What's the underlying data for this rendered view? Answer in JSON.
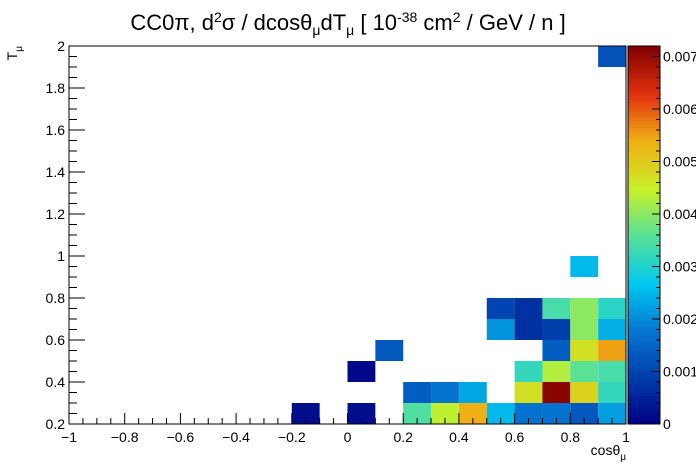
{
  "chart_data": {
    "type": "heatmap",
    "title": {
      "pre": "CC0π, d",
      "sup1": "2",
      "mid1": "σ / dcosθ",
      "sub1": "μ",
      "mid2": "dT",
      "sub2": "μ",
      "mid3": " [ 10",
      "sup2": "-38",
      "mid4": " cm",
      "sup3": "2",
      "post": " / GeV / n ]"
    },
    "xlabel": {
      "main": "cosθ",
      "sub": "μ"
    },
    "ylabel": {
      "main": "T",
      "sub": "μ"
    },
    "xlim": [
      -1,
      1
    ],
    "ylim": [
      0.2,
      2
    ],
    "zlim": [
      0,
      0.0072
    ],
    "x_ticks": [
      "−1",
      "−0.8",
      "−0.6",
      "−0.4",
      "−0.2",
      "0",
      "0.2",
      "0.4",
      "0.6",
      "0.8",
      "1"
    ],
    "y_ticks": [
      "0.2",
      "0.4",
      "0.6",
      "0.8",
      "1",
      "1.2",
      "1.4",
      "1.6",
      "1.8",
      "2"
    ],
    "z_ticks": [
      "0",
      "0.001",
      "0.002",
      "0.003",
      "0.004",
      "0.005",
      "0.006",
      "0.007"
    ],
    "bins": [
      {
        "x": [
          -0.2,
          -0.1
        ],
        "y": [
          0.2,
          0.3
        ],
        "z": 0.0002
      },
      {
        "x": [
          0.0,
          0.1
        ],
        "y": [
          0.2,
          0.3
        ],
        "z": 0.0002
      },
      {
        "x": [
          0.2,
          0.3
        ],
        "y": [
          0.2,
          0.3
        ],
        "z": 0.0035
      },
      {
        "x": [
          0.3,
          0.4
        ],
        "y": [
          0.2,
          0.3
        ],
        "z": 0.0044
      },
      {
        "x": [
          0.4,
          0.5
        ],
        "y": [
          0.2,
          0.3
        ],
        "z": 0.0054
      },
      {
        "x": [
          0.5,
          0.6
        ],
        "y": [
          0.2,
          0.3
        ],
        "z": 0.0025
      },
      {
        "x": [
          0.6,
          0.7
        ],
        "y": [
          0.2,
          0.3
        ],
        "z": 0.0017
      },
      {
        "x": [
          0.7,
          0.8
        ],
        "y": [
          0.2,
          0.3
        ],
        "z": 0.0017
      },
      {
        "x": [
          0.8,
          0.9
        ],
        "y": [
          0.2,
          0.3
        ],
        "z": 0.0013
      },
      {
        "x": [
          0.9,
          1.0
        ],
        "y": [
          0.2,
          0.3
        ],
        "z": 0.0022
      },
      {
        "x": [
          0.2,
          0.3
        ],
        "y": [
          0.3,
          0.4
        ],
        "z": 0.0014
      },
      {
        "x": [
          0.3,
          0.4
        ],
        "y": [
          0.3,
          0.4
        ],
        "z": 0.0017
      },
      {
        "x": [
          0.4,
          0.5
        ],
        "y": [
          0.3,
          0.4
        ],
        "z": 0.0023
      },
      {
        "x": [
          0.6,
          0.7
        ],
        "y": [
          0.3,
          0.4
        ],
        "z": 0.0047
      },
      {
        "x": [
          0.7,
          0.8
        ],
        "y": [
          0.3,
          0.4
        ],
        "z": 0.0071
      },
      {
        "x": [
          0.8,
          0.9
        ],
        "y": [
          0.3,
          0.4
        ],
        "z": 0.0049
      },
      {
        "x": [
          0.9,
          1.0
        ],
        "y": [
          0.3,
          0.4
        ],
        "z": 0.0032
      },
      {
        "x": [
          0.0,
          0.1
        ],
        "y": [
          0.4,
          0.5
        ],
        "z": 0.0001
      },
      {
        "x": [
          0.6,
          0.7
        ],
        "y": [
          0.4,
          0.5
        ],
        "z": 0.0032
      },
      {
        "x": [
          0.7,
          0.8
        ],
        "y": [
          0.4,
          0.5
        ],
        "z": 0.0043
      },
      {
        "x": [
          0.8,
          0.9
        ],
        "y": [
          0.4,
          0.5
        ],
        "z": 0.0036
      },
      {
        "x": [
          0.9,
          1.0
        ],
        "y": [
          0.4,
          0.5
        ],
        "z": 0.0034
      },
      {
        "x": [
          0.1,
          0.2
        ],
        "y": [
          0.5,
          0.6
        ],
        "z": 0.0013
      },
      {
        "x": [
          0.7,
          0.8
        ],
        "y": [
          0.5,
          0.6
        ],
        "z": 0.0014
      },
      {
        "x": [
          0.8,
          0.9
        ],
        "y": [
          0.5,
          0.6
        ],
        "z": 0.0047
      },
      {
        "x": [
          0.9,
          1.0
        ],
        "y": [
          0.5,
          0.6
        ],
        "z": 0.0055
      },
      {
        "x": [
          0.5,
          0.6
        ],
        "y": [
          0.6,
          0.7
        ],
        "z": 0.0021
      },
      {
        "x": [
          0.6,
          0.7
        ],
        "y": [
          0.6,
          0.7
        ],
        "z": 0.0007
      },
      {
        "x": [
          0.7,
          0.8
        ],
        "y": [
          0.6,
          0.7
        ],
        "z": 0.0009
      },
      {
        "x": [
          0.8,
          0.9
        ],
        "y": [
          0.6,
          0.7
        ],
        "z": 0.004
      },
      {
        "x": [
          0.9,
          1.0
        ],
        "y": [
          0.6,
          0.7
        ],
        "z": 0.0024
      },
      {
        "x": [
          0.5,
          0.6
        ],
        "y": [
          0.7,
          0.8
        ],
        "z": 0.001
      },
      {
        "x": [
          0.6,
          0.7
        ],
        "y": [
          0.7,
          0.8
        ],
        "z": 0.0007
      },
      {
        "x": [
          0.7,
          0.8
        ],
        "y": [
          0.7,
          0.8
        ],
        "z": 0.0034
      },
      {
        "x": [
          0.8,
          0.9
        ],
        "y": [
          0.7,
          0.8
        ],
        "z": 0.004
      },
      {
        "x": [
          0.9,
          1.0
        ],
        "y": [
          0.7,
          0.8
        ],
        "z": 0.0031
      },
      {
        "x": [
          0.8,
          0.9
        ],
        "y": [
          0.9,
          1.0
        ],
        "z": 0.0025
      },
      {
        "x": [
          0.9,
          1.0
        ],
        "y": [
          1.9,
          2.0
        ],
        "z": 0.0012
      }
    ]
  }
}
